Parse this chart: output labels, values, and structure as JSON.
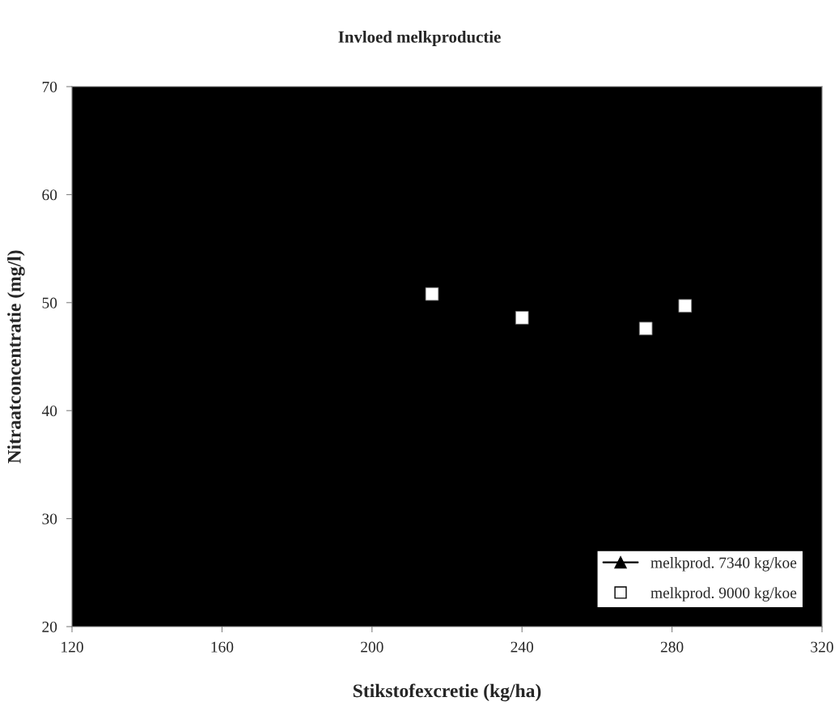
{
  "chart_data": {
    "type": "scatter",
    "title": "Invloed melkproductie",
    "xlabel": "Stikstofexcretie (kg/ha)",
    "ylabel": "Nitraatconcentratie (mg/l)",
    "xlim": [
      120,
      320
    ],
    "xticks": [
      120,
      160,
      200,
      240,
      280,
      320
    ],
    "ylim": [
      20,
      70
    ],
    "yticks": [
      20,
      30,
      40,
      50,
      60,
      70
    ],
    "grid": false,
    "legend": "bottom right",
    "series": [
      {
        "name": "melkprod. 7340 kg/koe",
        "type": "line",
        "marker": "triangle",
        "line_style": "solid",
        "color": "#000000"
      },
      {
        "name": "melkprod. 9000 kg/koe",
        "marker": "square",
        "color": "#ffffff",
        "x": [
          216,
          240,
          273,
          283.5
        ],
        "values": [
          50.8,
          48.6,
          47.6,
          49.7
        ]
      }
    ]
  }
}
